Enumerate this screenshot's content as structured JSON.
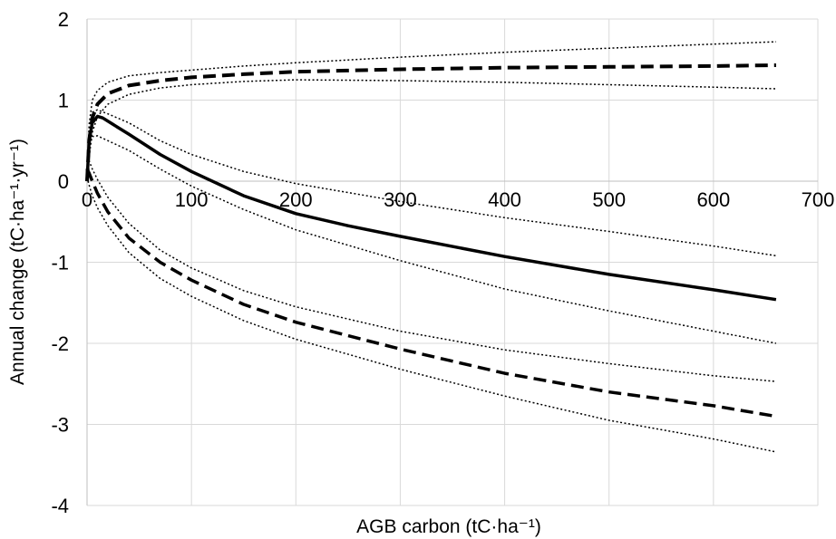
{
  "chart_data": {
    "type": "line",
    "title": "",
    "xlabel": "AGB carbon (tC·ha⁻¹)",
    "ylabel": "Annual change (tC·ha⁻¹·yr⁻¹)",
    "xlim": [
      0,
      700
    ],
    "ylim": [
      -4,
      2
    ],
    "x_ticks": [
      0,
      100,
      200,
      300,
      400,
      500,
      600,
      700
    ],
    "y_ticks": [
      -4,
      -3,
      -2,
      -1,
      0,
      1,
      2
    ],
    "x_tick_labels": [
      "0",
      "100",
      "200",
      "300",
      "400",
      "500",
      "600",
      "700"
    ],
    "y_tick_labels": [
      "-4",
      "-3",
      "-2",
      "-1",
      "0",
      "1",
      "2"
    ],
    "grid": true,
    "legend": "none",
    "colors": {
      "line": "#000000",
      "grid": "#d9d9d9"
    },
    "series": [
      {
        "style": "dashed",
        "width": 4,
        "x": [
          0,
          2,
          5,
          10,
          20,
          40,
          70,
          100,
          150,
          200,
          300,
          400,
          500,
          600,
          660
        ],
        "y": [
          0.0,
          0.5,
          0.78,
          0.95,
          1.08,
          1.18,
          1.24,
          1.28,
          1.32,
          1.35,
          1.38,
          1.4,
          1.41,
          1.42,
          1.43
        ]
      },
      {
        "style": "dotted",
        "width": 1.5,
        "x": [
          0,
          2,
          5,
          10,
          20,
          40,
          70,
          100,
          150,
          200,
          300,
          400,
          500,
          600,
          660
        ],
        "y": [
          0.0,
          0.7,
          1.0,
          1.12,
          1.22,
          1.3,
          1.34,
          1.37,
          1.42,
          1.46,
          1.53,
          1.59,
          1.64,
          1.69,
          1.72
        ]
      },
      {
        "style": "dotted",
        "width": 1.5,
        "x": [
          0,
          2,
          5,
          10,
          20,
          40,
          70,
          100,
          150,
          200,
          300,
          400,
          500,
          600,
          660
        ],
        "y": [
          0.0,
          0.3,
          0.6,
          0.8,
          0.95,
          1.07,
          1.15,
          1.19,
          1.23,
          1.25,
          1.24,
          1.22,
          1.19,
          1.16,
          1.14
        ]
      },
      {
        "style": "solid",
        "width": 3.5,
        "x": [
          0,
          2,
          5,
          10,
          15,
          25,
          40,
          70,
          100,
          150,
          200,
          250,
          300,
          400,
          500,
          600,
          660
        ],
        "y": [
          0.0,
          0.5,
          0.72,
          0.8,
          0.78,
          0.7,
          0.58,
          0.33,
          0.12,
          -0.18,
          -0.4,
          -0.55,
          -0.68,
          -0.93,
          -1.15,
          -1.34,
          -1.46
        ]
      },
      {
        "style": "dotted",
        "width": 1.5,
        "x": [
          0,
          2,
          5,
          10,
          20,
          40,
          70,
          100,
          150,
          200,
          300,
          400,
          500,
          600,
          660
        ],
        "y": [
          0.1,
          0.6,
          0.85,
          0.88,
          0.83,
          0.72,
          0.5,
          0.33,
          0.12,
          -0.03,
          -0.25,
          -0.45,
          -0.62,
          -0.8,
          -0.92
        ]
      },
      {
        "style": "dotted",
        "width": 1.5,
        "x": [
          0,
          2,
          5,
          10,
          20,
          40,
          70,
          100,
          150,
          200,
          300,
          400,
          500,
          600,
          660
        ],
        "y": [
          0.0,
          0.4,
          0.55,
          0.56,
          0.5,
          0.38,
          0.15,
          -0.06,
          -0.35,
          -0.6,
          -0.98,
          -1.33,
          -1.6,
          -1.85,
          -2.0
        ]
      },
      {
        "style": "dashed",
        "width": 3.5,
        "x": [
          0,
          2,
          5,
          10,
          20,
          40,
          70,
          100,
          150,
          200,
          300,
          400,
          500,
          600,
          660
        ],
        "y": [
          0.15,
          0.1,
          0.0,
          -0.15,
          -0.38,
          -0.7,
          -1.0,
          -1.22,
          -1.52,
          -1.74,
          -2.07,
          -2.37,
          -2.6,
          -2.77,
          -2.9
        ]
      },
      {
        "style": "dotted",
        "width": 1.5,
        "x": [
          0,
          2,
          5,
          10,
          20,
          40,
          70,
          100,
          150,
          200,
          300,
          400,
          500,
          600,
          660
        ],
        "y": [
          0.3,
          0.25,
          0.15,
          0.02,
          -0.2,
          -0.52,
          -0.85,
          -1.07,
          -1.35,
          -1.55,
          -1.85,
          -2.08,
          -2.25,
          -2.4,
          -2.47
        ]
      },
      {
        "style": "dotted",
        "width": 1.5,
        "x": [
          0,
          2,
          5,
          10,
          20,
          40,
          70,
          100,
          150,
          200,
          300,
          400,
          500,
          600,
          660
        ],
        "y": [
          0.05,
          -0.05,
          -0.18,
          -0.33,
          -0.55,
          -0.88,
          -1.2,
          -1.42,
          -1.72,
          -1.95,
          -2.32,
          -2.65,
          -2.95,
          -3.18,
          -3.34
        ]
      }
    ]
  }
}
